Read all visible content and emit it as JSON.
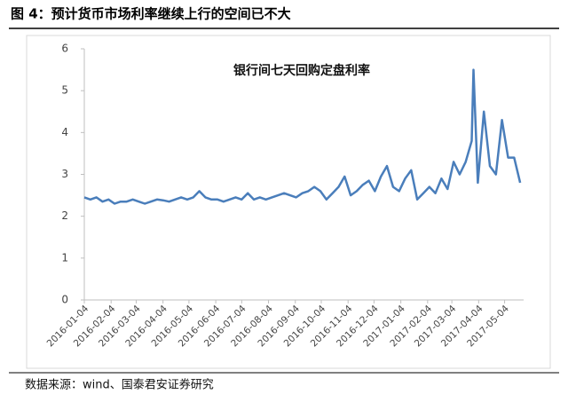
{
  "header": "图 4：预计货币市场利率继续上行的空间已不大",
  "source": "数据来源：wind、国泰君安证券研究",
  "chart_data": {
    "type": "line",
    "title": "银行间七天回购定盘利率",
    "x": [
      "2016-01-04",
      "2016-01-11",
      "2016-01-18",
      "2016-01-25",
      "2016-02-01",
      "2016-02-08",
      "2016-02-15",
      "2016-02-22",
      "2016-02-29",
      "2016-03-07",
      "2016-03-14",
      "2016-03-21",
      "2016-03-28",
      "2016-04-04",
      "2016-04-11",
      "2016-04-18",
      "2016-04-25",
      "2016-05-02",
      "2016-05-09",
      "2016-05-16",
      "2016-05-23",
      "2016-05-30",
      "2016-06-06",
      "2016-06-13",
      "2016-06-20",
      "2016-06-27",
      "2016-07-04",
      "2016-07-11",
      "2016-07-18",
      "2016-07-25",
      "2016-08-01",
      "2016-08-08",
      "2016-08-15",
      "2016-08-22",
      "2016-08-29",
      "2016-09-05",
      "2016-09-12",
      "2016-09-19",
      "2016-09-26",
      "2016-10-03",
      "2016-10-10",
      "2016-10-17",
      "2016-10-24",
      "2016-10-31",
      "2016-11-07",
      "2016-11-14",
      "2016-11-21",
      "2016-11-28",
      "2016-12-05",
      "2016-12-12",
      "2016-12-19",
      "2016-12-26",
      "2017-01-02",
      "2017-01-09",
      "2017-01-16",
      "2017-01-23",
      "2017-01-30",
      "2017-02-06",
      "2017-02-13",
      "2017-02-20",
      "2017-02-27",
      "2017-03-06",
      "2017-03-13",
      "2017-03-20",
      "2017-03-27",
      "2017-03-29",
      "2017-04-03",
      "2017-04-10",
      "2017-04-17",
      "2017-04-24",
      "2017-05-01",
      "2017-05-08",
      "2017-05-15",
      "2017-05-22"
    ],
    "series": [
      {
        "color": "#4a7ebb",
        "values": [
          2.45,
          2.4,
          2.45,
          2.35,
          2.4,
          2.3,
          2.35,
          2.35,
          2.4,
          2.35,
          2.3,
          2.35,
          2.4,
          2.38,
          2.35,
          2.4,
          2.45,
          2.4,
          2.45,
          2.6,
          2.45,
          2.4,
          2.4,
          2.35,
          2.4,
          2.45,
          2.4,
          2.55,
          2.4,
          2.45,
          2.4,
          2.45,
          2.5,
          2.55,
          2.5,
          2.45,
          2.55,
          2.6,
          2.7,
          2.6,
          2.4,
          2.55,
          2.7,
          2.95,
          2.5,
          2.6,
          2.75,
          2.85,
          2.6,
          2.95,
          3.2,
          2.7,
          2.6,
          2.9,
          3.1,
          2.4,
          2.55,
          2.7,
          2.55,
          2.9,
          2.65,
          3.3,
          3.0,
          3.3,
          3.8,
          5.5,
          2.8,
          4.5,
          3.2,
          3.0,
          4.3,
          3.4,
          3.4,
          2.8
        ]
      }
    ],
    "xlim": [
      "2016-01-04",
      "2017-05-26"
    ],
    "xticks": [
      "2016-01-04",
      "2016-02-04",
      "2016-03-04",
      "2016-04-04",
      "2016-05-04",
      "2016-06-04",
      "2016-07-04",
      "2016-08-04",
      "2016-09-04",
      "2016-10-04",
      "2016-11-04",
      "2016-12-04",
      "2017-01-04",
      "2017-02-04",
      "2017-03-04",
      "2017-04-04",
      "2017-05-04"
    ],
    "ylim": [
      0,
      6
    ],
    "yticks": [
      0,
      1,
      2,
      3,
      4,
      5,
      6
    ],
    "grid": false
  }
}
